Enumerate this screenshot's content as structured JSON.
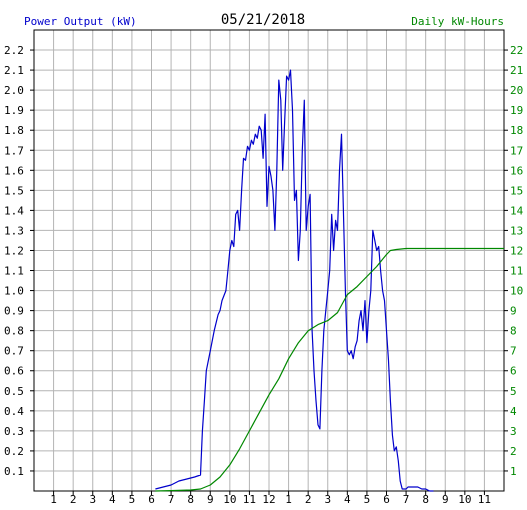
{
  "chart_data": {
    "type": "line",
    "title": "05/21/2018",
    "left_axis_label": "Power Output (kW)",
    "right_axis_label": "Daily kW-Hours",
    "x_ticks": [
      "1",
      "2",
      "3",
      "4",
      "5",
      "6",
      "7",
      "8",
      "9",
      "10",
      "11",
      "12",
      "1",
      "2",
      "3",
      "4",
      "5",
      "6",
      "7",
      "8",
      "9",
      "10",
      "11"
    ],
    "x_range_hours": [
      0,
      24
    ],
    "y_left_range": [
      0,
      2.3
    ],
    "y_left_ticks": [
      "0.1",
      "0.2",
      "0.3",
      "0.4",
      "0.5",
      "0.6",
      "0.7",
      "0.8",
      "0.9",
      "1.0",
      "1.1",
      "1.2",
      "1.3",
      "1.4",
      "1.5",
      "1.6",
      "1.7",
      "1.8",
      "1.9",
      "2.0",
      "2.1",
      "2.2"
    ],
    "y_right_range": [
      0,
      23
    ],
    "y_right_ticks": [
      "1",
      "2",
      "3",
      "4",
      "5",
      "6",
      "7",
      "8",
      "9",
      "10",
      "11",
      "12",
      "13",
      "14",
      "15",
      "16",
      "17",
      "18",
      "19",
      "20",
      "21",
      "22"
    ],
    "grid": true,
    "colors": {
      "power": "#0000cc",
      "energy": "#008800",
      "left_axis": "#0000cc",
      "right_axis": "#008800",
      "grid": "#b4b4b4",
      "text": "#000000"
    },
    "series": [
      {
        "name": "Power Output (kW)",
        "axis": "left",
        "x": [
          6.2,
          6.6,
          7,
          7.4,
          7.8,
          8.2,
          8.5,
          8.6,
          8.7,
          8.8,
          9,
          9.2,
          9.4,
          9.5,
          9.6,
          9.8,
          9.9,
          10,
          10.1,
          10.2,
          10.3,
          10.4,
          10.5,
          10.6,
          10.7,
          10.8,
          10.9,
          11,
          11.1,
          11.2,
          11.3,
          11.4,
          11.5,
          11.6,
          11.7,
          11.8,
          11.9,
          12,
          12.1,
          12.2,
          12.3,
          12.4,
          12.5,
          12.6,
          12.7,
          12.8,
          12.9,
          13,
          13.1,
          13.2,
          13.3,
          13.4,
          13.5,
          13.6,
          13.7,
          13.8,
          13.9,
          14,
          14.1,
          14.2,
          14.3,
          14.4,
          14.5,
          14.6,
          14.7,
          14.8,
          14.9,
          15,
          15.1,
          15.2,
          15.3,
          15.4,
          15.5,
          15.6,
          15.7,
          15.8,
          15.9,
          16,
          16.1,
          16.2,
          16.3,
          16.4,
          16.5,
          16.6,
          16.7,
          16.8,
          16.9,
          17,
          17.1,
          17.2,
          17.3,
          17.4,
          17.5,
          17.6,
          17.7,
          17.8,
          17.9,
          18,
          18.1,
          18.2,
          18.3,
          18.4,
          18.5,
          18.6,
          18.7,
          18.8,
          18.9,
          19,
          19.1,
          19.2,
          19.4,
          19.6,
          19.8,
          20,
          20.2,
          20.4
        ],
        "y": [
          0.01,
          0.02,
          0.03,
          0.05,
          0.06,
          0.07,
          0.08,
          0.3,
          0.45,
          0.6,
          0.7,
          0.8,
          0.88,
          0.9,
          0.95,
          1.0,
          1.1,
          1.2,
          1.25,
          1.22,
          1.38,
          1.4,
          1.3,
          1.5,
          1.66,
          1.65,
          1.72,
          1.7,
          1.75,
          1.73,
          1.78,
          1.76,
          1.82,
          1.8,
          1.66,
          1.88,
          1.42,
          1.62,
          1.57,
          1.5,
          1.3,
          1.6,
          2.05,
          1.95,
          1.6,
          1.85,
          2.07,
          2.05,
          2.1,
          1.9,
          1.45,
          1.5,
          1.15,
          1.3,
          1.7,
          1.95,
          1.3,
          1.42,
          1.48,
          0.8,
          0.6,
          0.45,
          0.33,
          0.31,
          0.6,
          0.8,
          0.9,
          1.0,
          1.1,
          1.38,
          1.2,
          1.35,
          1.3,
          1.6,
          1.78,
          1.4,
          1.0,
          0.7,
          0.68,
          0.7,
          0.66,
          0.72,
          0.75,
          0.85,
          0.9,
          0.8,
          0.95,
          0.74,
          0.9,
          1.0,
          1.3,
          1.25,
          1.2,
          1.22,
          1.1,
          1.0,
          0.95,
          0.8,
          0.65,
          0.45,
          0.28,
          0.2,
          0.22,
          0.15,
          0.05,
          0.01,
          0.01,
          0.01,
          0.02,
          0.02,
          0.02,
          0.02,
          0.01,
          0.01,
          0.0,
          0.0
        ]
      },
      {
        "name": "Daily kW-Hours",
        "axis": "right",
        "x": [
          6.2,
          7,
          8,
          8.5,
          9,
          9.5,
          10,
          10.5,
          11,
          11.5,
          12,
          12.5,
          13,
          13.5,
          14,
          14.5,
          15,
          15.5,
          16,
          16.5,
          17,
          17.5,
          18,
          18.2,
          18.5,
          19,
          20,
          21,
          22,
          23,
          24
        ],
        "y": [
          0,
          0.02,
          0.05,
          0.1,
          0.3,
          0.7,
          1.3,
          2.1,
          3.0,
          3.9,
          4.8,
          5.6,
          6.6,
          7.4,
          8.0,
          8.3,
          8.5,
          8.9,
          9.8,
          10.2,
          10.7,
          11.2,
          11.8,
          12.0,
          12.05,
          12.1,
          12.1,
          12.1,
          12.1,
          12.1,
          12.1
        ]
      }
    ]
  }
}
